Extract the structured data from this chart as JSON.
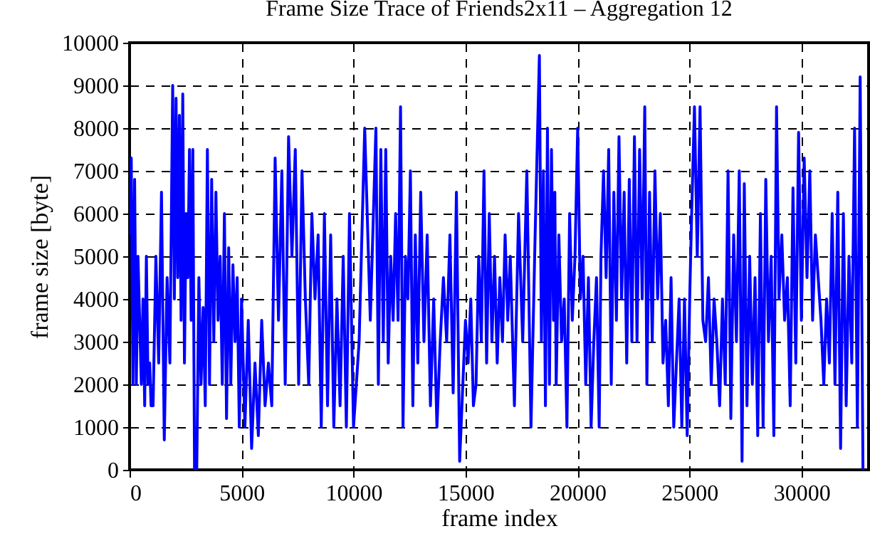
{
  "chart_data": {
    "type": "line",
    "title": "Frame Size Trace of Friends2x11 – Aggregation 12",
    "xlabel": "frame index",
    "ylabel": "frame size [byte]",
    "x": [
      0,
      75,
      150,
      225,
      300,
      375,
      450,
      525,
      600,
      675,
      750,
      825,
      900,
      960,
      1050,
      1175,
      1300,
      1425,
      1550,
      1675,
      1800,
      1925,
      2000,
      2075,
      2150,
      2225,
      2300,
      2375,
      2450,
      2525,
      2600,
      2675,
      2750,
      2825,
      2900,
      3000,
      3095,
      3190,
      3285,
      3380,
      3475,
      3570,
      3665,
      3760,
      3855,
      3950,
      4045,
      4140,
      4235,
      4330,
      4425,
      4520,
      4615,
      4710,
      4805,
      4900,
      5000,
      5150,
      5300,
      5450,
      5600,
      5750,
      5900,
      6050,
      6200,
      6350,
      6500,
      6650,
      6800,
      6950,
      7100,
      7250,
      7400,
      7550,
      7700,
      7850,
      8000,
      8140,
      8280,
      8420,
      8560,
      8700,
      8840,
      8980,
      9120,
      9260,
      9400,
      9540,
      9680,
      9820,
      10000,
      10250,
      10500,
      10750,
      11000,
      11110,
      11220,
      11330,
      11440,
      11550,
      11660,
      11770,
      11880,
      11990,
      12100,
      12210,
      12320,
      12430,
      12540,
      12650,
      12760,
      12870,
      13000,
      13145,
      13290,
      13435,
      13580,
      13725,
      13870,
      14015,
      14160,
      14305,
      14450,
      14595,
      14740,
      15000,
      15118,
      15236,
      15354,
      15472,
      15590,
      15708,
      15826,
      15944,
      16062,
      16180,
      16298,
      16416,
      16534,
      16652,
      16770,
      16888,
      17000,
      17185,
      17370,
      17555,
      17740,
      17925,
      18110,
      18300,
      18390,
      18480,
      18570,
      18660,
      18750,
      18840,
      18930,
      18990,
      19050,
      19170,
      19290,
      19410,
      19530,
      19650,
      19770,
      19890,
      20010,
      20130,
      20250,
      20370,
      20490,
      20610,
      20730,
      20850,
      20970,
      21050,
      21165,
      21280,
      21395,
      21510,
      21625,
      21740,
      21855,
      21970,
      22085,
      22200,
      22315,
      22430,
      22545,
      22660,
      22775,
      22890,
      23005,
      23100,
      23220,
      23340,
      23460,
      23580,
      23700,
      23820,
      23940,
      24060,
      24180,
      24300,
      24420,
      24540,
      24660,
      24780,
      24900,
      25020,
      25100,
      25225,
      25350,
      25475,
      25600,
      25725,
      25850,
      25975,
      26100,
      26225,
      26350,
      26475,
      26600,
      26725,
      26850,
      26975,
      27100,
      27225,
      27350,
      27450,
      27570,
      27690,
      27810,
      27930,
      28050,
      28170,
      28290,
      28410,
      28530,
      28650,
      28770,
      28890,
      29000,
      29125,
      29250,
      29375,
      29500,
      29625,
      29750,
      29875,
      30000,
      30125,
      30250,
      30375,
      30500,
      30625,
      30750,
      30875,
      31000,
      31125,
      31250,
      31375,
      31500,
      31625,
      31750,
      31875,
      32000,
      32125,
      32250,
      32375,
      32500,
      32625,
      32750
    ],
    "series": [
      {
        "color": "#0000ff",
        "values": [
          5500,
          7300,
          2000,
          6800,
          2000,
          5000,
          3500,
          2000,
          4000,
          1500,
          5000,
          2000,
          2500,
          1500,
          1500,
          5000,
          2500,
          6500,
          700,
          4500,
          2500,
          9000,
          4000,
          8700,
          4500,
          8300,
          3500,
          8800,
          2500,
          6000,
          4500,
          7500,
          3500,
          7500,
          0,
          0,
          4500,
          2000,
          3800,
          1500,
          7500,
          2000,
          6800,
          3000,
          6500,
          3500,
          5000,
          2000,
          6000,
          1200,
          5200,
          2000,
          4800,
          3000,
          4500,
          1000,
          4000,
          1000,
          3500,
          500,
          2500,
          800,
          3500,
          1500,
          2500,
          1500,
          7300,
          3500,
          7000,
          2000,
          7800,
          5000,
          7500,
          2000,
          7000,
          4000,
          2000,
          6000,
          4000,
          5500,
          1000,
          6000,
          1500,
          5500,
          1000,
          4000,
          1500,
          5000,
          1000,
          6000,
          1000,
          3000,
          8000,
          3500,
          8000,
          2000,
          7500,
          3000,
          7500,
          2500,
          5000,
          3500,
          6000,
          3500,
          8500,
          1000,
          5000,
          4000,
          7000,
          1500,
          5500,
          2500,
          6500,
          3000,
          5500,
          1500,
          4000,
          1000,
          3000,
          4500,
          3000,
          5500,
          1800,
          6500,
          200,
          3500,
          2500,
          4000,
          1500,
          2000,
          5000,
          3000,
          7000,
          2500,
          6000,
          3000,
          5000,
          2500,
          4500,
          3000,
          5500,
          3500,
          5000,
          1500,
          6000,
          3000,
          7000,
          1000,
          5500,
          9700,
          3000,
          7000,
          1500,
          8000,
          2000,
          7500,
          3500,
          6500,
          2000,
          5500,
          3000,
          4000,
          1000,
          6000,
          3500,
          5000,
          8000,
          4000,
          5000,
          2000,
          4500,
          1000,
          3000,
          4500,
          1000,
          5000,
          7000,
          4500,
          7500,
          2000,
          6500,
          3500,
          7800,
          4000,
          6500,
          2500,
          6800,
          3000,
          7800,
          3000,
          7500,
          4000,
          8500,
          2000,
          6500,
          3000,
          7000,
          4000,
          6000,
          2500,
          3500,
          1500,
          4500,
          1000,
          2500,
          4000,
          1000,
          4000,
          800,
          4200,
          6000,
          8500,
          5000,
          8500,
          3500,
          3000,
          4500,
          2000,
          4000,
          3000,
          1500,
          4000,
          2000,
          7000,
          1200,
          5500,
          3000,
          7000,
          200,
          6700,
          1500,
          5000,
          2000,
          4500,
          800,
          6000,
          1000,
          6800,
          3000,
          5000,
          800,
          8500,
          4000,
          5500,
          3500,
          4500,
          1500,
          6600,
          2500,
          7900,
          3500,
          7300,
          4500,
          7000,
          3500,
          5500,
          4500,
          3500,
          2000,
          4000,
          2500,
          6000,
          2000,
          6500,
          500,
          6000,
          1500,
          5000,
          2500,
          8000,
          1000,
          9200,
          0
        ]
      }
    ],
    "xlim": [
      0,
      33000
    ],
    "xticks": [
      0,
      5000,
      10000,
      15000,
      20000,
      25000,
      30000
    ],
    "ylim": [
      0,
      10000
    ],
    "yticks": [
      0,
      1000,
      2000,
      3000,
      4000,
      5000,
      6000,
      7000,
      8000,
      9000,
      10000
    ],
    "grid": true,
    "line_style": "solid",
    "marker": "none"
  }
}
